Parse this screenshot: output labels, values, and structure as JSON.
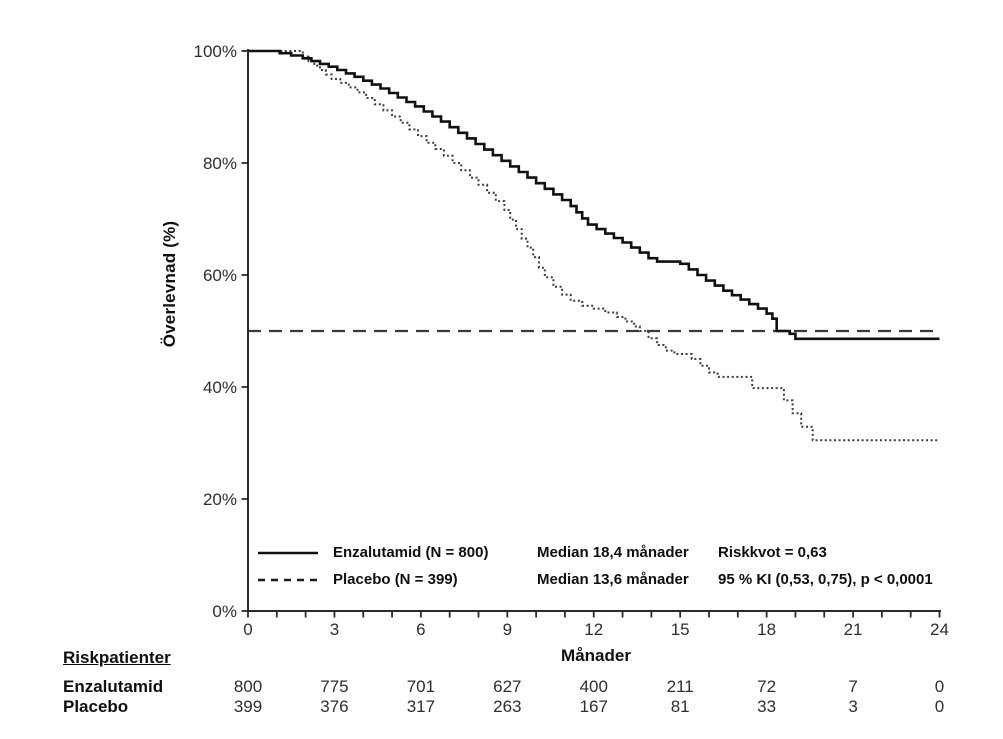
{
  "chart_data": {
    "type": "line",
    "subtype": "kaplan-meier-step",
    "title": "",
    "ylabel": "Överlevnad (%)",
    "xlabel": "Månader",
    "xlim": [
      0,
      24
    ],
    "ylim": [
      0,
      100
    ],
    "xticks": [
      0,
      3,
      6,
      9,
      12,
      15,
      18,
      21,
      24
    ],
    "minor_xtick_step": 1,
    "yticks": [
      0,
      20,
      40,
      60,
      80,
      100
    ],
    "ytick_suffix": "%",
    "grid": false,
    "legend_position": "bottom-inside",
    "reference_line": {
      "y": 50,
      "style": "dashed",
      "color": "#3a3a3a"
    },
    "colors": {
      "axis": "#2b2b2b",
      "tick_text": "#2e2e2e",
      "enzalutamid": "#101010",
      "placebo": "#3c3c3c"
    },
    "series": [
      {
        "name": "Placebo (N = 399)",
        "key": "placebo",
        "style": "dotted",
        "points": [
          [
            0,
            100
          ],
          [
            1.9,
            99.0
          ],
          [
            2.1,
            98.2
          ],
          [
            2.3,
            97.4
          ],
          [
            2.5,
            96.6
          ],
          [
            2.7,
            95.8
          ],
          [
            2.9,
            95.0
          ],
          [
            3.2,
            94.3
          ],
          [
            3.5,
            93.5
          ],
          [
            3.8,
            92.6
          ],
          [
            4.1,
            91.6
          ],
          [
            4.4,
            90.5
          ],
          [
            4.7,
            89.4
          ],
          [
            5.0,
            88.3
          ],
          [
            5.3,
            87.2
          ],
          [
            5.6,
            86.0
          ],
          [
            5.9,
            84.8
          ],
          [
            6.2,
            83.6
          ],
          [
            6.5,
            82.5
          ],
          [
            6.8,
            81.3
          ],
          [
            7.1,
            80.0
          ],
          [
            7.4,
            78.7
          ],
          [
            7.7,
            77.4
          ],
          [
            8.0,
            76.1
          ],
          [
            8.3,
            74.7
          ],
          [
            8.6,
            73.2
          ],
          [
            8.9,
            71.6
          ],
          [
            9.1,
            69.9
          ],
          [
            9.3,
            68.2
          ],
          [
            9.5,
            66.5
          ],
          [
            9.7,
            64.9
          ],
          [
            9.9,
            63.2
          ],
          [
            10.1,
            61.3
          ],
          [
            10.3,
            59.6
          ],
          [
            10.6,
            57.9
          ],
          [
            10.9,
            56.5
          ],
          [
            11.2,
            55.4
          ],
          [
            11.6,
            54.5
          ],
          [
            12.0,
            54.0
          ],
          [
            12.4,
            53.3
          ],
          [
            12.8,
            52.5
          ],
          [
            13.1,
            51.7
          ],
          [
            13.4,
            50.8
          ],
          [
            13.6,
            50.0
          ],
          [
            13.9,
            48.7
          ],
          [
            14.2,
            47.5
          ],
          [
            14.5,
            46.5
          ],
          [
            14.8,
            45.9
          ],
          [
            15.4,
            45.0
          ],
          [
            15.7,
            43.8
          ],
          [
            16.0,
            42.6
          ],
          [
            16.3,
            41.8
          ],
          [
            17.5,
            39.8
          ],
          [
            18.6,
            37.6
          ],
          [
            18.9,
            35.3
          ],
          [
            19.2,
            32.9
          ],
          [
            19.6,
            30.5
          ],
          [
            24,
            30.5
          ]
        ]
      },
      {
        "name": "Enzalutamid (N = 800)",
        "key": "enzalutamid",
        "style": "solid",
        "points": [
          [
            0,
            100
          ],
          [
            1.1,
            99.6
          ],
          [
            1.5,
            99.2
          ],
          [
            1.9,
            98.7
          ],
          [
            2.2,
            98.2
          ],
          [
            2.5,
            97.7
          ],
          [
            2.8,
            97.2
          ],
          [
            3.1,
            96.6
          ],
          [
            3.4,
            96.0
          ],
          [
            3.7,
            95.4
          ],
          [
            4.0,
            94.7
          ],
          [
            4.3,
            94.0
          ],
          [
            4.6,
            93.3
          ],
          [
            4.9,
            92.5
          ],
          [
            5.2,
            91.7
          ],
          [
            5.5,
            90.9
          ],
          [
            5.8,
            90.1
          ],
          [
            6.1,
            89.2
          ],
          [
            6.4,
            88.3
          ],
          [
            6.7,
            87.4
          ],
          [
            7.0,
            86.4
          ],
          [
            7.3,
            85.4
          ],
          [
            7.6,
            84.4
          ],
          [
            7.9,
            83.4
          ],
          [
            8.2,
            82.4
          ],
          [
            8.5,
            81.4
          ],
          [
            8.8,
            80.4
          ],
          [
            9.1,
            79.4
          ],
          [
            9.4,
            78.4
          ],
          [
            9.7,
            77.4
          ],
          [
            10.0,
            76.4
          ],
          [
            10.3,
            75.4
          ],
          [
            10.6,
            74.4
          ],
          [
            10.9,
            73.4
          ],
          [
            11.2,
            72.3
          ],
          [
            11.4,
            71.2
          ],
          [
            11.6,
            70.1
          ],
          [
            11.8,
            69.0
          ],
          [
            12.1,
            68.2
          ],
          [
            12.4,
            67.4
          ],
          [
            12.7,
            66.6
          ],
          [
            13.0,
            65.8
          ],
          [
            13.3,
            64.9
          ],
          [
            13.6,
            64.0
          ],
          [
            13.9,
            63.0
          ],
          [
            14.2,
            62.4
          ],
          [
            15.0,
            62.0
          ],
          [
            15.3,
            61.0
          ],
          [
            15.6,
            60.0
          ],
          [
            15.9,
            59.0
          ],
          [
            16.2,
            58.1
          ],
          [
            16.5,
            57.2
          ],
          [
            16.8,
            56.4
          ],
          [
            17.1,
            55.6
          ],
          [
            17.4,
            54.8
          ],
          [
            17.7,
            54.0
          ],
          [
            18.0,
            53.1
          ],
          [
            18.2,
            52.2
          ],
          [
            18.35,
            50.0
          ],
          [
            18.8,
            49.5
          ],
          [
            19.0,
            48.6
          ],
          [
            24,
            48.6
          ]
        ]
      }
    ],
    "legend": [
      {
        "label": "Enzalutamid (N = 800)",
        "median": "Median 18,4 månader",
        "stat": "Riskkvot = 0,63"
      },
      {
        "label": "Placebo (N = 399)",
        "median": "Median 13,6 månader",
        "stat": "95 % KI (0,53, 0,75), p < 0,0001"
      }
    ]
  },
  "risk_table": {
    "header": "Riskpatienter",
    "months": [
      0,
      3,
      6,
      9,
      12,
      15,
      18,
      21,
      24
    ],
    "rows": [
      {
        "name": "Enzalutamid",
        "values": [
          800,
          775,
          701,
          627,
          400,
          211,
          72,
          7,
          0
        ]
      },
      {
        "name": "Placebo",
        "values": [
          399,
          376,
          317,
          263,
          167,
          81,
          33,
          3,
          0
        ]
      }
    ]
  }
}
